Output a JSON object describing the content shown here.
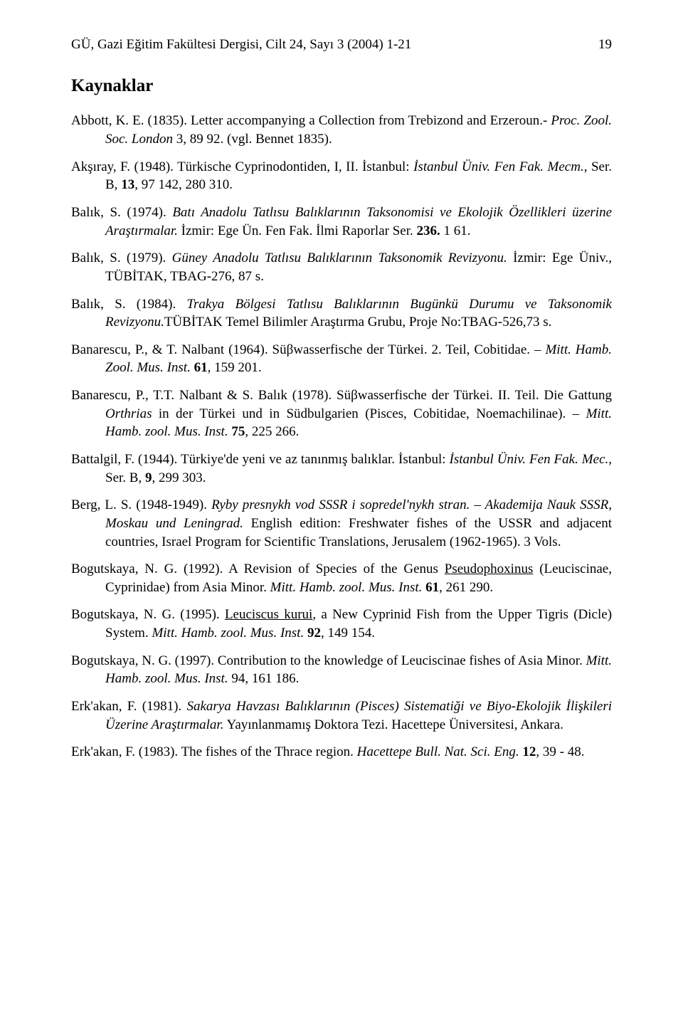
{
  "header": {
    "journal": "GÜ, Gazi Eğitim Fakültesi Dergisi, Cilt 24, Sayı 3 (2004) 1-21",
    "page_number": "19"
  },
  "section_title": "Kaynaklar",
  "references": {
    "abbott": {
      "author_year": "Abbott, K. E. (1835). Letter accompanying a Collection from Trebizond and Erzeroun.- ",
      "italic1": "Proc. Zool. Soc. London",
      "rest": " 3, 89 92. (vgl. Bennet 1835)."
    },
    "aksiray": {
      "author_year": "Akşıray, F. (1948). Türkische Cyprinodontiden, I, II. İstanbul: ",
      "italic1": "İstanbul Üniv. Fen Fak. Mecm.",
      "mid": ", Ser. B, ",
      "bold1": "13",
      "rest": ", 97 142, 280 310."
    },
    "balik1974": {
      "author_year": "Balık, S. (1974). ",
      "italic1": "Batı Anadolu Tatlısu Balıklarının Taksonomisi ve Ekolojik Özellikleri üzerine Araştırmalar.",
      "mid": " İzmir: Ege Ün. Fen Fak. İlmi Raporlar Ser. ",
      "bold1": "236.",
      "rest": " 1 61."
    },
    "balik1979": {
      "author_year": "Balık, S. (1979). ",
      "italic1": "Güney Anadolu Tatlısu Balıklarının Taksonomik Revizyonu.",
      "rest": " İzmir: Ege Üniv., TÜBİTAK, TBAG-276, 87 s."
    },
    "balik1984": {
      "author_year": "Balık, S. (1984). ",
      "italic1": "Trakya Bölgesi Tatlısu Balıklarının Bugünkü Durumu ve Taksonomik Revizyonu.",
      "rest": "TÜBİTAK Temel Bilimler Araştırma Grubu, Proje No:TBAG-526,73 s."
    },
    "banarescu1964": {
      "author_year": "Banarescu, P., & T. Nalbant (1964). Süβwasserfische der Türkei. 2. Teil, Cobitidae. – ",
      "italic1": "Mitt. Hamb. Zool. Mus. Inst. ",
      "bold1": "61",
      "rest": ", 159 201."
    },
    "banarescu1978": {
      "author_year": "Banarescu, P., T.T. Nalbant & S. Balık (1978). Süβwasserfische der Türkei. II. Teil. Die Gattung ",
      "italic1": "Orthrias",
      "mid": " in der Türkei und in Südbulgarien (Pisces, Cobitidae, Noemachilinae). – ",
      "italic2": "Mitt. Hamb. zool. Mus. Inst. ",
      "bold1": "75",
      "rest": ", 225 266."
    },
    "battalgil": {
      "author_year": "Battalgil, F. (1944). Türkiye'de yeni ve az tanınmış balıklar. İstanbul: ",
      "italic1": "İstanbul Üniv. Fen Fak. Mec.",
      "mid": ", Ser. B, ",
      "bold1": "9",
      "rest": ", 299 303."
    },
    "berg": {
      "author_year": "Berg, L. S. (1948-1949). ",
      "italic1": "Ryby presnykh vod SSSR i sopredel'nykh stran. – Akademija Nauk SSSR, Moskau und Leningrad.",
      "rest": " English edition: Freshwater fishes of the USSR and adjacent countries, Israel Program for Scientific Translations, Jerusalem (1962-1965). 3 Vols."
    },
    "bogutskaya1992": {
      "author_year": "Bogutskaya, N. G. (1992). A Revision of Species of the Genus ",
      "underline1": "Pseudophoxinus",
      "mid": " (Leuciscinae, Cyprinidae) from Asia Minor. ",
      "italic1": "Mitt. Hamb. zool. Mus. Inst. ",
      "bold1": "61",
      "rest": ", 261 290."
    },
    "bogutskaya1995": {
      "author_year": "Bogutskaya, N. G. (1995). ",
      "underline1": "Leuciscus kurui",
      "mid": ", a New Cyprinid Fish from the Upper Tigris (Dicle) System. ",
      "italic1": "Mitt. Hamb. zool. Mus. Inst. ",
      "bold1": "92",
      "rest": ", 149 154."
    },
    "bogutskaya1997": {
      "author_year": "Bogutskaya, N. G. (1997). Contribution to the knowledge of Leuciscinae fishes of Asia Minor. ",
      "italic1": "Mitt. Hamb. zool. Mus. Inst.",
      "rest": " 94, 161 186."
    },
    "erkakan1981": {
      "author_year": "Erk'akan, F. (1981). ",
      "italic1": "Sakarya Havzası Balıklarının (Pisces) Sistematiği ve Biyo-Ekolojik İlişkileri Üzerine Araştırmalar.",
      "rest": " Yayınlanmamış Doktora Tezi. Hacettepe Üniversitesi, Ankara."
    },
    "erkakan1983": {
      "author_year": "Erk'akan, F. (1983). The fishes of the Thrace region. ",
      "italic1": "Hacettepe Bull. Nat. Sci. Eng. ",
      "bold1": "12",
      "rest": ", 39 - 48."
    }
  }
}
